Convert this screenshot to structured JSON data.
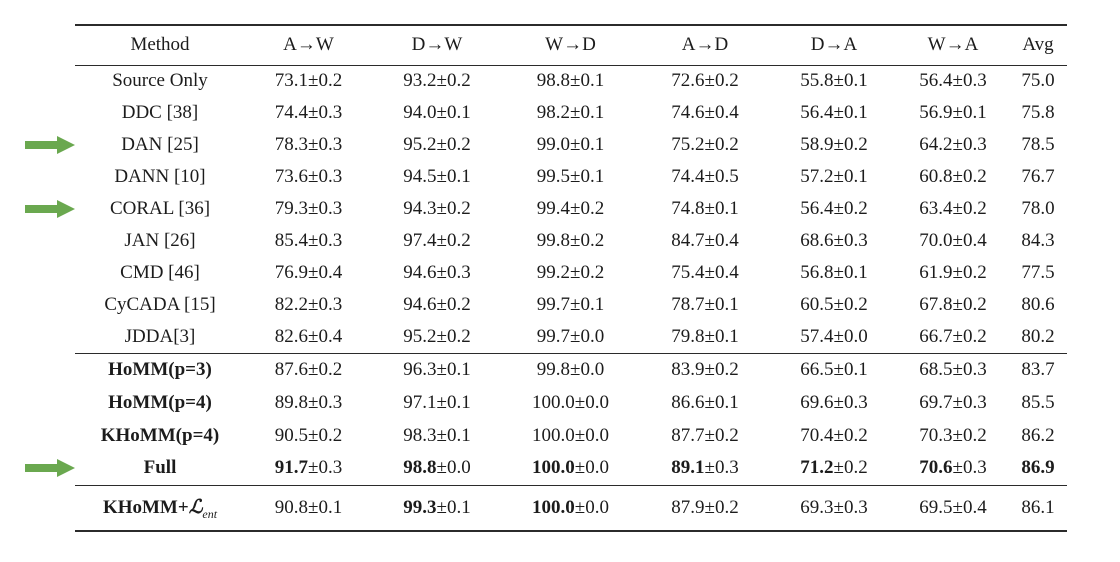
{
  "colors": {
    "background": "#ffffff",
    "text": "#1c1c1c",
    "rule": "#2b2b2b",
    "arrow_green": "#6aa84f"
  },
  "table": {
    "columns": [
      "Method",
      "A→W",
      "D→W",
      "W→D",
      "A→D",
      "D→A",
      "W→A",
      "Avg"
    ],
    "sections": [
      {
        "name": "baselines",
        "rows": [
          {
            "method": "Source Only",
            "method_bold": false,
            "arrow": false,
            "values": [
              {
                "main": "73.1",
                "err": "±0.2",
                "bold_main": false
              },
              {
                "main": "93.2",
                "err": "±0.2",
                "bold_main": false
              },
              {
                "main": "98.8",
                "err": "±0.1",
                "bold_main": false
              },
              {
                "main": "72.6",
                "err": "±0.2",
                "bold_main": false
              },
              {
                "main": "55.8",
                "err": "±0.1",
                "bold_main": false
              },
              {
                "main": "56.4",
                "err": "±0.3",
                "bold_main": false
              },
              {
                "main": "75.0",
                "err": "",
                "bold_main": false
              }
            ]
          },
          {
            "method": "DDC [38]",
            "method_bold": false,
            "arrow": false,
            "values": [
              {
                "main": "74.4",
                "err": "±0.3",
                "bold_main": false
              },
              {
                "main": "94.0",
                "err": "±0.1",
                "bold_main": false
              },
              {
                "main": "98.2",
                "err": "±0.1",
                "bold_main": false
              },
              {
                "main": "74.6",
                "err": "±0.4",
                "bold_main": false
              },
              {
                "main": "56.4",
                "err": "±0.1",
                "bold_main": false
              },
              {
                "main": "56.9",
                "err": "±0.1",
                "bold_main": false
              },
              {
                "main": "75.8",
                "err": "",
                "bold_main": false
              }
            ]
          },
          {
            "method": "DAN [25]",
            "method_bold": false,
            "arrow": true,
            "values": [
              {
                "main": "78.3",
                "err": "±0.3",
                "bold_main": false
              },
              {
                "main": "95.2",
                "err": "±0.2",
                "bold_main": false
              },
              {
                "main": "99.0",
                "err": "±0.1",
                "bold_main": false
              },
              {
                "main": "75.2",
                "err": "±0.2",
                "bold_main": false
              },
              {
                "main": "58.9",
                "err": "±0.2",
                "bold_main": false
              },
              {
                "main": "64.2",
                "err": "±0.3",
                "bold_main": false
              },
              {
                "main": "78.5",
                "err": "",
                "bold_main": false
              }
            ]
          },
          {
            "method": "DANN [10]",
            "method_bold": false,
            "arrow": false,
            "values": [
              {
                "main": "73.6",
                "err": "±0.3",
                "bold_main": false
              },
              {
                "main": "94.5",
                "err": "±0.1",
                "bold_main": false
              },
              {
                "main": "99.5",
                "err": "±0.1",
                "bold_main": false
              },
              {
                "main": "74.4",
                "err": "±0.5",
                "bold_main": false
              },
              {
                "main": "57.2",
                "err": "±0.1",
                "bold_main": false
              },
              {
                "main": "60.8",
                "err": "±0.2",
                "bold_main": false
              },
              {
                "main": "76.7",
                "err": "",
                "bold_main": false
              }
            ]
          },
          {
            "method": "CORAL [36]",
            "method_bold": false,
            "arrow": true,
            "values": [
              {
                "main": "79.3",
                "err": "±0.3",
                "bold_main": false
              },
              {
                "main": "94.3",
                "err": "±0.2",
                "bold_main": false
              },
              {
                "main": "99.4",
                "err": "±0.2",
                "bold_main": false
              },
              {
                "main": "74.8",
                "err": "±0.1",
                "bold_main": false
              },
              {
                "main": "56.4",
                "err": "±0.2",
                "bold_main": false
              },
              {
                "main": "63.4",
                "err": "±0.2",
                "bold_main": false
              },
              {
                "main": "78.0",
                "err": "",
                "bold_main": false
              }
            ]
          },
          {
            "method": "JAN [26]",
            "method_bold": false,
            "arrow": false,
            "values": [
              {
                "main": "85.4",
                "err": "±0.3",
                "bold_main": false
              },
              {
                "main": "97.4",
                "err": "±0.2",
                "bold_main": false
              },
              {
                "main": "99.8",
                "err": "±0.2",
                "bold_main": false
              },
              {
                "main": "84.7",
                "err": "±0.4",
                "bold_main": false
              },
              {
                "main": "68.6",
                "err": "±0.3",
                "bold_main": false
              },
              {
                "main": "70.0",
                "err": "±0.4",
                "bold_main": false
              },
              {
                "main": "84.3",
                "err": "",
                "bold_main": false
              }
            ]
          },
          {
            "method": "CMD [46]",
            "method_bold": false,
            "arrow": false,
            "values": [
              {
                "main": "76.9",
                "err": "±0.4",
                "bold_main": false
              },
              {
                "main": "94.6",
                "err": "±0.3",
                "bold_main": false
              },
              {
                "main": "99.2",
                "err": "±0.2",
                "bold_main": false
              },
              {
                "main": "75.4",
                "err": "±0.4",
                "bold_main": false
              },
              {
                "main": "56.8",
                "err": "±0.1",
                "bold_main": false
              },
              {
                "main": "61.9",
                "err": "±0.2",
                "bold_main": false
              },
              {
                "main": "77.5",
                "err": "",
                "bold_main": false
              }
            ]
          },
          {
            "method": "CyCADA [15]",
            "method_bold": false,
            "arrow": false,
            "values": [
              {
                "main": "82.2",
                "err": "±0.3",
                "bold_main": false
              },
              {
                "main": "94.6",
                "err": "±0.2",
                "bold_main": false
              },
              {
                "main": "99.7",
                "err": "±0.1",
                "bold_main": false
              },
              {
                "main": "78.7",
                "err": "±0.1",
                "bold_main": false
              },
              {
                "main": "60.5",
                "err": "±0.2",
                "bold_main": false
              },
              {
                "main": "67.8",
                "err": "±0.2",
                "bold_main": false
              },
              {
                "main": "80.6",
                "err": "",
                "bold_main": false
              }
            ]
          },
          {
            "method": "JDDA[3]",
            "method_bold": false,
            "arrow": false,
            "values": [
              {
                "main": "82.6",
                "err": "±0.4",
                "bold_main": false
              },
              {
                "main": "95.2",
                "err": "±0.2",
                "bold_main": false
              },
              {
                "main": "99.7",
                "err": "±0.0",
                "bold_main": false
              },
              {
                "main": "79.8",
                "err": "±0.1",
                "bold_main": false
              },
              {
                "main": "57.4",
                "err": "±0.0",
                "bold_main": false
              },
              {
                "main": "66.7",
                "err": "±0.2",
                "bold_main": false
              },
              {
                "main": "80.2",
                "err": "",
                "bold_main": false
              }
            ]
          }
        ]
      },
      {
        "name": "homm-variants",
        "rows": [
          {
            "method": "HoMM(p=3)",
            "method_bold": true,
            "arrow": false,
            "values": [
              {
                "main": "87.6",
                "err": "±0.2",
                "bold_main": false
              },
              {
                "main": "96.3",
                "err": "±0.1",
                "bold_main": false
              },
              {
                "main": "99.8",
                "err": "±0.0",
                "bold_main": false
              },
              {
                "main": "83.9",
                "err": "±0.2",
                "bold_main": false
              },
              {
                "main": "66.5",
                "err": "±0.1",
                "bold_main": false
              },
              {
                "main": "68.5",
                "err": "±0.3",
                "bold_main": false
              },
              {
                "main": "83.7",
                "err": "",
                "bold_main": false
              }
            ]
          },
          {
            "method": "HoMM(p=4)",
            "method_bold": true,
            "arrow": false,
            "values": [
              {
                "main": "89.8",
                "err": "±0.3",
                "bold_main": false
              },
              {
                "main": "97.1",
                "err": "±0.1",
                "bold_main": false
              },
              {
                "main": "100.0",
                "err": "±0.0",
                "bold_main": false
              },
              {
                "main": "86.6",
                "err": "±0.1",
                "bold_main": false
              },
              {
                "main": "69.6",
                "err": "±0.3",
                "bold_main": false
              },
              {
                "main": "69.7",
                "err": "±0.3",
                "bold_main": false
              },
              {
                "main": "85.5",
                "err": "",
                "bold_main": false
              }
            ]
          },
          {
            "method": "KHoMM(p=4)",
            "method_bold": true,
            "arrow": false,
            "values": [
              {
                "main": "90.5",
                "err": "±0.2",
                "bold_main": false
              },
              {
                "main": "98.3",
                "err": "±0.1",
                "bold_main": false
              },
              {
                "main": "100.0",
                "err": "±0.0",
                "bold_main": false
              },
              {
                "main": "87.7",
                "err": "±0.2",
                "bold_main": false
              },
              {
                "main": "70.4",
                "err": "±0.2",
                "bold_main": false
              },
              {
                "main": "70.3",
                "err": "±0.2",
                "bold_main": false
              },
              {
                "main": "86.2",
                "err": "",
                "bold_main": false
              }
            ]
          },
          {
            "method": "Full",
            "method_bold": true,
            "arrow": true,
            "values": [
              {
                "main": "91.7",
                "err": "±0.3",
                "bold_main": true
              },
              {
                "main": "98.8",
                "err": "±0.0",
                "bold_main": true
              },
              {
                "main": "100.0",
                "err": "±0.0",
                "bold_main": true
              },
              {
                "main": "89.1",
                "err": "±0.3",
                "bold_main": true
              },
              {
                "main": "71.2",
                "err": "±0.2",
                "bold_main": true
              },
              {
                "main": "70.6",
                "err": "±0.3",
                "bold_main": true
              },
              {
                "main": "86.9",
                "err": "",
                "bold_main": true
              }
            ]
          }
        ]
      },
      {
        "name": "khomm-entropy",
        "rows": [
          {
            "method": "KHoMM+",
            "method_math": "ℒ",
            "method_sub": "ent",
            "method_bold": true,
            "arrow": false,
            "values": [
              {
                "main": "90.8",
                "err": "±0.1",
                "bold_main": false
              },
              {
                "main": "99.3",
                "err": "±0.1",
                "bold_main": true
              },
              {
                "main": "100.0",
                "err": "±0.0",
                "bold_main": true
              },
              {
                "main": "87.9",
                "err": "±0.2",
                "bold_main": false
              },
              {
                "main": "69.3",
                "err": "±0.3",
                "bold_main": false
              },
              {
                "main": "69.5",
                "err": "±0.4",
                "bold_main": false
              },
              {
                "main": "86.1",
                "err": "",
                "bold_main": false
              }
            ]
          }
        ]
      }
    ]
  }
}
